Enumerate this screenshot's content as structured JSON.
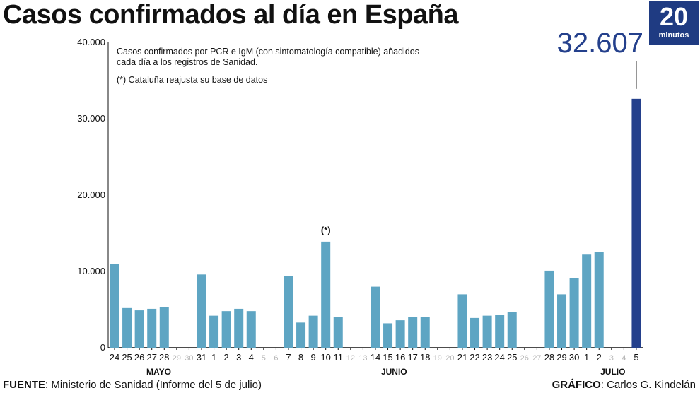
{
  "header": {
    "title": "Casos confirmados al día en España",
    "logo_number": "20",
    "logo_text": "minutos"
  },
  "footer": {
    "source_label": "FUENTE",
    "source_text": ": Ministerio de Sanidad (Informe del 5 de julio)",
    "credit_label": "GRÁFICO",
    "credit_text": ": Carlos G. Kindelán"
  },
  "colors": {
    "bar": "#5ea5c3",
    "highlight_bar": "#24408c",
    "highlight_text": "#24408c",
    "weekend_label": "#b5b5b5",
    "axis": "#111111"
  },
  "chart_data": {
    "type": "bar",
    "ylim": [
      0,
      40000
    ],
    "yticks": [
      0,
      10000,
      20000,
      30000,
      40000
    ],
    "ytick_labels": [
      "0",
      "10.000",
      "20.000",
      "30.000",
      "40.000"
    ],
    "note_line1": "Casos confirmados por PCR e IgM (con sintomatología compatible) añadidos",
    "note_line2": "cada día a los registros de Sanidad.",
    "note_asterisk": "(*) Cataluña reajusta su base de datos",
    "annotation_marker": "(*)",
    "highlight_value_label": "32.607",
    "months": [
      "MAYO",
      "JUNIO",
      "JULIO"
    ],
    "categories": [
      "24",
      "25",
      "26",
      "27",
      "28",
      "29",
      "30",
      "31",
      "1",
      "2",
      "3",
      "4",
      "5",
      "6",
      "7",
      "8",
      "9",
      "10",
      "11",
      "12",
      "13",
      "14",
      "15",
      "16",
      "17",
      "18",
      "19",
      "20",
      "21",
      "22",
      "23",
      "24",
      "25",
      "26",
      "27",
      "28",
      "29",
      "30",
      "1",
      "2",
      "3",
      "4",
      "5"
    ],
    "values": [
      11000,
      5200,
      4900,
      5100,
      5300,
      0,
      0,
      9600,
      4200,
      4800,
      5100,
      4800,
      0,
      0,
      9400,
      3300,
      4200,
      13900,
      4000,
      0,
      0,
      8000,
      3200,
      3600,
      4000,
      4000,
      0,
      0,
      7000,
      3900,
      4200,
      4300,
      4700,
      0,
      0,
      10100,
      7000,
      9100,
      12200,
      12500,
      0,
      0,
      32607
    ],
    "weekend": [
      false,
      false,
      false,
      false,
      false,
      true,
      true,
      false,
      false,
      false,
      false,
      false,
      true,
      true,
      false,
      false,
      false,
      false,
      false,
      true,
      true,
      false,
      false,
      false,
      false,
      false,
      true,
      true,
      false,
      false,
      false,
      false,
      false,
      true,
      true,
      false,
      false,
      false,
      false,
      false,
      true,
      true,
      false
    ],
    "highlight_index": 42,
    "annotation_index": 17
  }
}
